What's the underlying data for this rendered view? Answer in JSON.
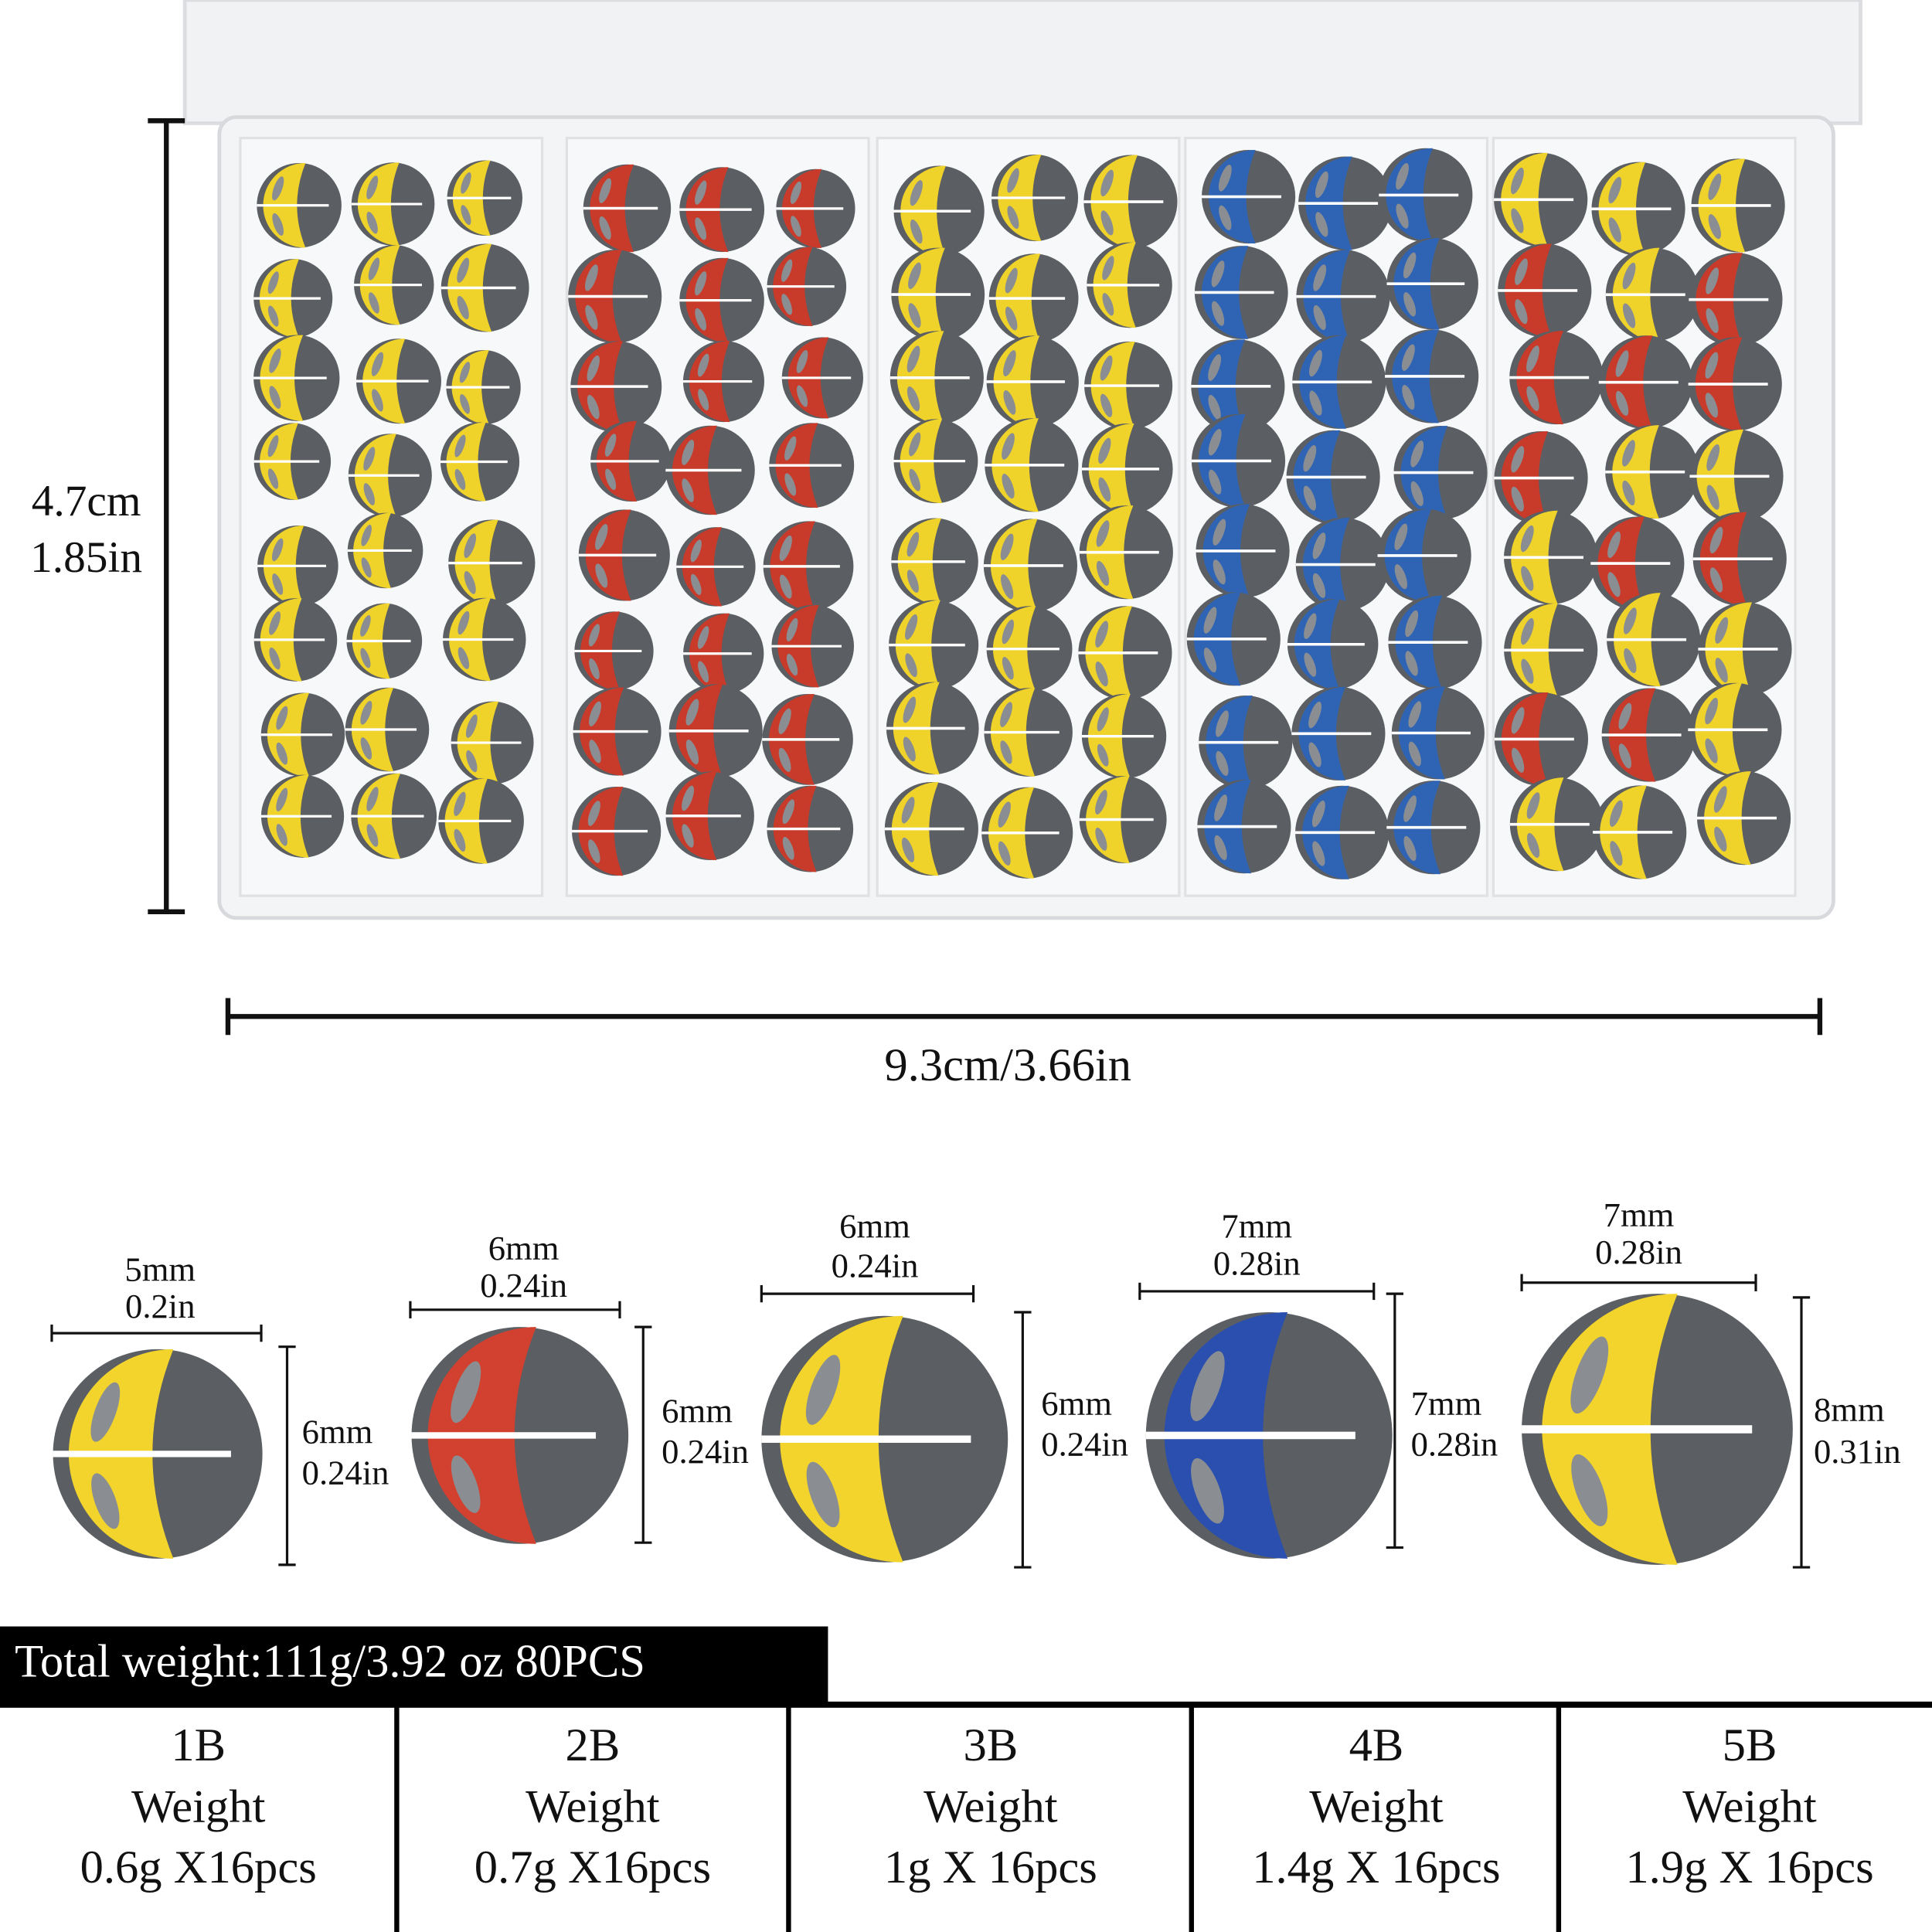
{
  "box": {
    "height_label": [
      "4.7cm",
      "1.85in"
    ],
    "width_label": "9.3cm/3.66in",
    "compartment_colors": [
      [
        "#f0d32a"
      ],
      [
        "#c83a2a"
      ],
      [
        "#f0d32a"
      ],
      [
        "#2f64b4"
      ],
      [
        "#f0d32a",
        "#c83a2a"
      ]
    ]
  },
  "sinkers": [
    {
      "width": [
        "5mm",
        "0.2in"
      ],
      "height": [
        "6mm",
        "0.24in"
      ],
      "color": "#f2d42c"
    },
    {
      "width": [
        "6mm",
        "0.24in"
      ],
      "height": [
        "6mm",
        "0.24in"
      ],
      "color": "#d2412f"
    },
    {
      "width": [
        "6mm",
        "0.24in"
      ],
      "height": [
        "6mm",
        "0.24in"
      ],
      "color": "#f2d42c"
    },
    {
      "width": [
        "7mm",
        "0.28in"
      ],
      "height": [
        "7mm",
        "0.28in"
      ],
      "color": "#2a4fae"
    },
    {
      "width": [
        "7mm",
        "0.28in"
      ],
      "height": [
        "8mm",
        "0.31in"
      ],
      "color": "#f2d42c"
    }
  ],
  "total": "Total weight:111g/3.92 oz  80PCS",
  "table": {
    "cells": [
      [
        "1B",
        "Weight",
        "0.6g X16pcs"
      ],
      [
        "2B",
        "Weight",
        "0.7g X16pcs"
      ],
      [
        "3B",
        "Weight",
        "1g X 16pcs"
      ],
      [
        "4B",
        "Weight",
        "1.4g X 16pcs"
      ],
      [
        "5B",
        "Weight",
        "1.9g X 16pcs"
      ]
    ]
  }
}
